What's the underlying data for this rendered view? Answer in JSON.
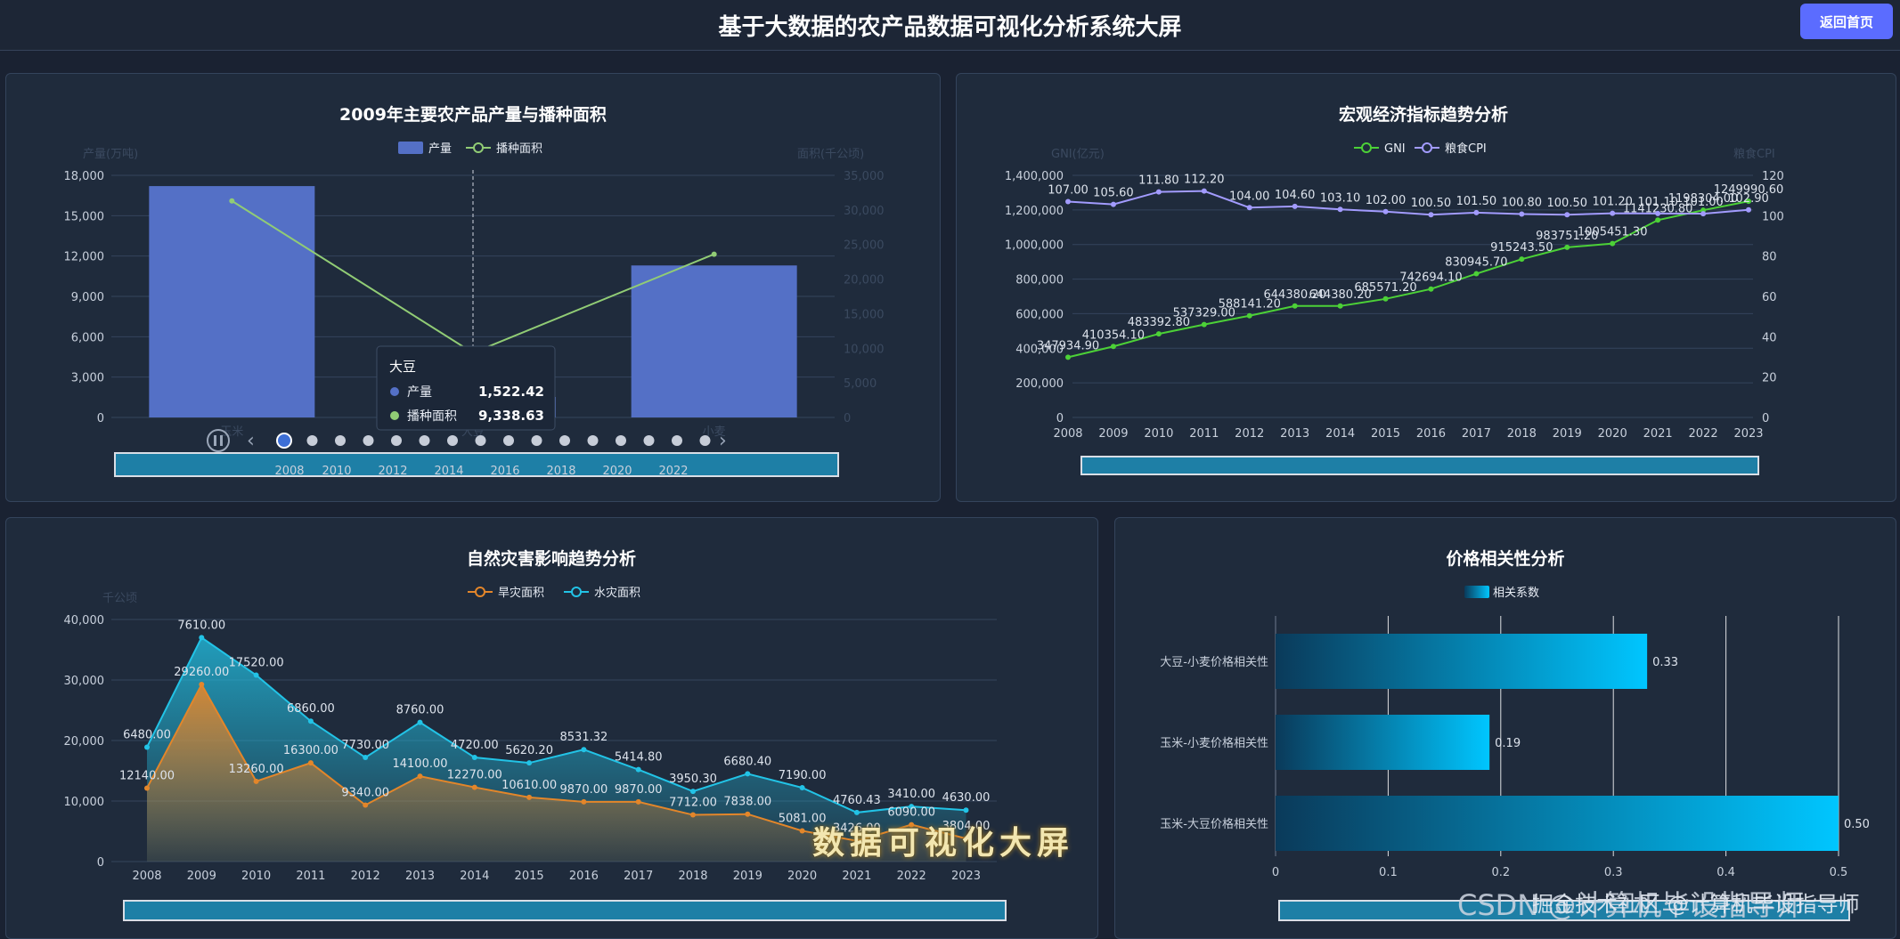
{
  "header": {
    "title": "基于大数据的农产品数据可视化分析系统大屏",
    "back_label": "返回首页"
  },
  "watermark": {
    "overlay": "数据可视化大屏",
    "csdn": "CSDN @计算机毕设指导师",
    "juejin": "掘金技术社区 @计算机毕设指导师"
  },
  "colors": {
    "bar_blue": "#5470c6",
    "line_green": "#91cc75",
    "gni_green": "#4cd137",
    "cpi_purple": "#a29bfe",
    "drought_orange": "#e3862a",
    "flood_cyan": "#22c3e6",
    "corr_cyan": "#00c6ff"
  },
  "chart_data": [
    {
      "id": "production",
      "type": "bar",
      "title": "2009年主要农产品产量与播种面积",
      "ylabel": "产量(万吨)",
      "ylabel_right": "面积(千公顷)",
      "categories": [
        "玉米",
        "大豆",
        "小麦"
      ],
      "ylim": [
        0,
        18000
      ],
      "ylim_right": [
        0,
        35000
      ],
      "yticks": [
        "0",
        "3,000",
        "6,000",
        "9,000",
        "12,000",
        "15,000",
        "18,000"
      ],
      "yticks_right": [
        "0",
        "5,000",
        "10,000",
        "15,000",
        "20,000",
        "25,000",
        "30,000",
        "35,000"
      ],
      "series": [
        {
          "name": "产量",
          "type": "bar",
          "values": [
            17200,
            1522.42,
            11300
          ]
        },
        {
          "name": "播种面积",
          "type": "line",
          "values": [
            31300,
            9338.63,
            23600
          ]
        }
      ],
      "tooltip": {
        "category": "大豆",
        "rows": [
          {
            "name": "产量",
            "value": "1,522.42"
          },
          {
            "name": "播种面积",
            "value": "9,338.63"
          }
        ]
      },
      "timeline_labels": [
        "2010",
        "2012",
        "2014",
        "2016",
        "2018",
        "2020",
        "2022"
      ],
      "timeline_first": "2008"
    },
    {
      "id": "macro",
      "type": "line",
      "title": "宏观经济指标趋势分析",
      "ylabel": "GNI(亿元)",
      "ylabel_right": "粮食CPI",
      "x": [
        "2008",
        "2009",
        "2010",
        "2011",
        "2012",
        "2013",
        "2014",
        "2015",
        "2016",
        "2017",
        "2018",
        "2019",
        "2020",
        "2021",
        "2022",
        "2023"
      ],
      "ylim": [
        0,
        1400000
      ],
      "ylim_right": [
        0,
        120
      ],
      "yticks": [
        "0",
        "200,000",
        "400,000",
        "600,000",
        "800,000",
        "1,000,000",
        "1,200,000",
        "1,400,000"
      ],
      "yticks_right": [
        "0",
        "20",
        "40",
        "60",
        "80",
        "100",
        "120"
      ],
      "series": [
        {
          "name": "GNI",
          "values": [
            347934.9,
            410354.1,
            483392.8,
            537329.0,
            588141.2,
            644380.2,
            644380.2,
            685571.2,
            742694.1,
            830945.7,
            915243.5,
            983751.2,
            1005451.3,
            1141230.8,
            1198304.0,
            1249990.6
          ],
          "labels": [
            "347934.90",
            "410354.10",
            "483392.80",
            "537329.00",
            "588141.20",
            "644380.20",
            "644380.20",
            "685571.20",
            "742694.10",
            "830945.70",
            "915243.50",
            "983751.20",
            "1005451.30",
            "1141230.80",
            "1198304.00",
            "1249990.60"
          ]
        },
        {
          "name": "粮食CPI",
          "values": [
            107.0,
            105.6,
            111.8,
            112.2,
            104.0,
            104.6,
            103.1,
            102.0,
            100.5,
            101.5,
            100.8,
            100.5,
            101.2,
            101.1,
            101.0,
            102.9
          ],
          "labels": [
            "107.00",
            "105.60",
            "111.80",
            "112.20",
            "104.00",
            "104.60",
            "103.10",
            "102.00",
            "100.50",
            "101.50",
            "100.80",
            "100.50",
            "101.20",
            "101.10",
            "101.00",
            "102.90"
          ]
        }
      ]
    },
    {
      "id": "disaster",
      "type": "area",
      "title": "自然灾害影响趋势分析",
      "ylabel": "千公顷",
      "x": [
        "2008",
        "2009",
        "2010",
        "2011",
        "2012",
        "2013",
        "2014",
        "2015",
        "2016",
        "2017",
        "2018",
        "2019",
        "2020",
        "2021",
        "2022",
        "2023"
      ],
      "ylim": [
        0,
        40000
      ],
      "yticks": [
        "0",
        "10,000",
        "20,000",
        "30,000",
        "40,000"
      ],
      "series": [
        {
          "name": "旱灾面积",
          "values": [
            12140,
            29260,
            13260,
            16300,
            9340,
            14100,
            12270,
            10610,
            9870,
            9870,
            7712,
            7838,
            5081,
            3426,
            6090,
            3804
          ],
          "labels": [
            "12140.00",
            "29260.00",
            "13260.00",
            "16300.00",
            "9340.00",
            "14100.00",
            "12270.00",
            "10610.00",
            "9870.00",
            "9870.00",
            "7712.00",
            "7838.00",
            "5081.00",
            "3426.00",
            "6090.00",
            "3804.00"
          ]
        },
        {
          "name": "水灾面积",
          "values": [
            18900,
            37000,
            30800,
            23200,
            17200,
            23000,
            17200,
            16300,
            18500,
            15200,
            11600,
            14500,
            12200,
            8100,
            9100,
            8500
          ],
          "labels": [
            "6480.00",
            "7610.00",
            "17520.00",
            "6860.00",
            "7730.00",
            "8760.00",
            "4720.00",
            "5620.20",
            "8531.32",
            "5414.80",
            "3950.30",
            "6680.40",
            "7190.00",
            "4760.43",
            "3410.00",
            "4630.00"
          ]
        }
      ]
    },
    {
      "id": "correlation",
      "type": "bar",
      "title": "价格相关性分析",
      "legend": "相关系数",
      "categories": [
        "大豆-小麦价格相关性",
        "玉米-小麦价格相关性",
        "玉米-大豆价格相关性"
      ],
      "values": [
        0.33,
        0.19,
        0.5
      ],
      "labels": [
        "0.33",
        "0.19",
        "0.50"
      ],
      "xlim": [
        0,
        0.5
      ],
      "xticks": [
        "0",
        "0.1",
        "0.2",
        "0.3",
        "0.4",
        "0.5"
      ]
    }
  ]
}
